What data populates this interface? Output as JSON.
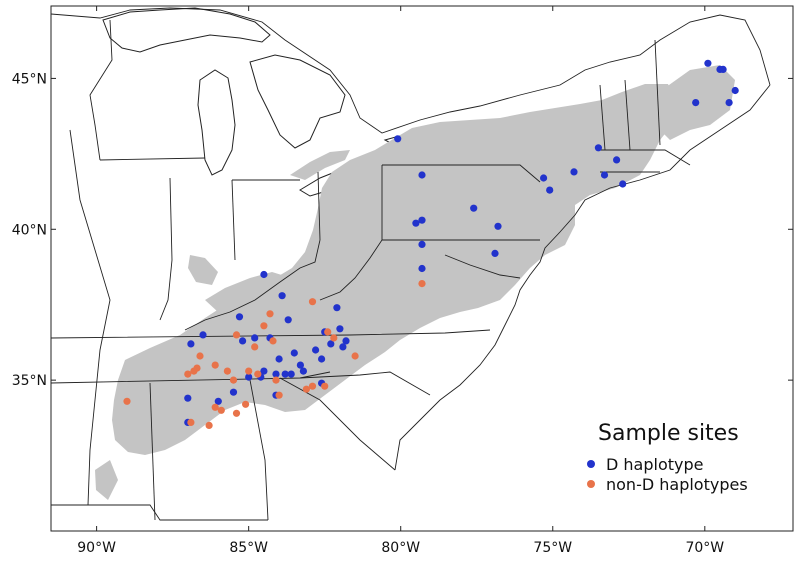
{
  "axes": {
    "x_ticks": [
      {
        "lon": -90,
        "label": "90°W"
      },
      {
        "lon": -85,
        "label": "85°W"
      },
      {
        "lon": -80,
        "label": "80°W"
      },
      {
        "lon": -75,
        "label": "75°W"
      },
      {
        "lon": -70,
        "label": "70°W"
      }
    ],
    "y_ticks": [
      {
        "lat": 45,
        "label": "45°N"
      },
      {
        "lat": 40,
        "label": "40°N"
      },
      {
        "lat": 35,
        "label": "35°N"
      }
    ],
    "lon_range": [
      -91.5,
      -67.1
    ],
    "lat_range": [
      30.0,
      47.4
    ]
  },
  "legend": {
    "title": "Sample sites",
    "items": [
      {
        "label": "D haplotype",
        "color": "#2233cc"
      },
      {
        "label": "non-D haplotypes",
        "color": "#e8734a"
      }
    ]
  },
  "colors": {
    "range_fill": "#c4c4c4",
    "boundary": "#222222"
  },
  "sites": {
    "d_haplotype": [
      [
        -80.1,
        43.0
      ],
      [
        -79.3,
        41.8
      ],
      [
        -77.6,
        40.7
      ],
      [
        -79.3,
        40.3
      ],
      [
        -79.5,
        40.2
      ],
      [
        -76.8,
        40.1
      ],
      [
        -79.3,
        39.5
      ],
      [
        -76.9,
        39.2
      ],
      [
        -79.3,
        38.7
      ],
      [
        -84.5,
        38.5
      ],
      [
        -83.9,
        37.8
      ],
      [
        -82.1,
        37.4
      ],
      [
        -83.7,
        37.0
      ],
      [
        -85.3,
        37.1
      ],
      [
        -82.0,
        36.7
      ],
      [
        -82.5,
        36.6
      ],
      [
        -84.8,
        36.4
      ],
      [
        -85.2,
        36.3
      ],
      [
        -86.5,
        36.5
      ],
      [
        -84.3,
        36.4
      ],
      [
        -81.8,
        36.3
      ],
      [
        -82.3,
        36.2
      ],
      [
        -81.9,
        36.1
      ],
      [
        -86.9,
        36.2
      ],
      [
        -83.5,
        35.9
      ],
      [
        -82.8,
        36.0
      ],
      [
        -82.6,
        35.7
      ],
      [
        -83.3,
        35.5
      ],
      [
        -84.0,
        35.7
      ],
      [
        -84.5,
        35.3
      ],
      [
        -83.6,
        35.2
      ],
      [
        -83.2,
        35.3
      ],
      [
        -84.1,
        35.2
      ],
      [
        -83.8,
        35.2
      ],
      [
        -84.6,
        35.1
      ],
      [
        -85.0,
        35.1
      ],
      [
        -85.5,
        34.6
      ],
      [
        -84.1,
        34.5
      ],
      [
        -82.6,
        34.9
      ],
      [
        -86.0,
        34.3
      ],
      [
        -87.0,
        33.6
      ],
      [
        -87.0,
        34.4
      ],
      [
        -75.3,
        41.7
      ],
      [
        -75.1,
        41.3
      ],
      [
        -73.5,
        42.7
      ],
      [
        -73.3,
        41.8
      ],
      [
        -72.9,
        42.3
      ],
      [
        -72.7,
        41.5
      ],
      [
        -74.3,
        41.9
      ],
      [
        -70.3,
        44.2
      ],
      [
        -69.9,
        45.5
      ],
      [
        -69.5,
        45.3
      ],
      [
        -69.4,
        45.3
      ],
      [
        -69.2,
        44.2
      ],
      [
        -69.0,
        44.6
      ]
    ],
    "non_d_haplotypes": [
      [
        -79.3,
        38.2
      ],
      [
        -82.9,
        37.6
      ],
      [
        -84.3,
        37.2
      ],
      [
        -84.5,
        36.8
      ],
      [
        -85.4,
        36.5
      ],
      [
        -84.8,
        36.1
      ],
      [
        -86.6,
        35.8
      ],
      [
        -86.7,
        35.4
      ],
      [
        -86.1,
        35.5
      ],
      [
        -85.7,
        35.3
      ],
      [
        -87.0,
        35.2
      ],
      [
        -86.8,
        35.3
      ],
      [
        -85.5,
        35.0
      ],
      [
        -85.0,
        35.3
      ],
      [
        -84.7,
        35.2
      ],
      [
        -84.1,
        35.0
      ],
      [
        -84.0,
        34.5
      ],
      [
        -82.9,
        34.8
      ],
      [
        -83.1,
        34.7
      ],
      [
        -82.5,
        34.8
      ],
      [
        -86.1,
        34.1
      ],
      [
        -85.9,
        34.0
      ],
      [
        -85.1,
        34.2
      ],
      [
        -85.4,
        33.9
      ],
      [
        -86.3,
        33.5
      ],
      [
        -86.9,
        33.6
      ],
      [
        -89.0,
        34.3
      ],
      [
        -81.5,
        35.8
      ],
      [
        -82.2,
        36.4
      ],
      [
        -82.4,
        36.6
      ],
      [
        -84.2,
        36.3
      ]
    ]
  }
}
